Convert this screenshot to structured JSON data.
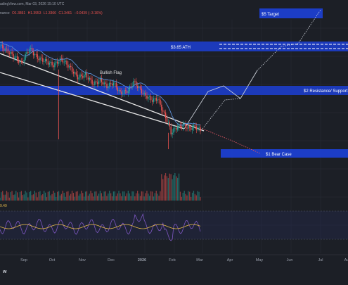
{
  "header": {
    "credit": "adingView.com, Mar 03, 2026 15:10 UTC",
    "symbol_fragment": "nance",
    "ohlc": [
      "O1.3861",
      "H1.3953",
      "L1.3366",
      "C1.3461",
      "−0.0439 (−3.16%)"
    ]
  },
  "colors": {
    "background": "#1c1f26",
    "candle_up": "#26a69a",
    "candle_down": "#ef5350",
    "level_band": "#1c3fcf",
    "flag_line": "#e8e8e8",
    "ma_line": "#5b8fd6",
    "rsi_line": "#7e57c2",
    "rsi_ma": "#e5b94a",
    "target_path": "#cfd4dc",
    "bear_path": "#e05561"
  },
  "annotations": {
    "target": "$5 Target",
    "ath": "$3.65 ATH",
    "resistance": "$2 Resistance/ Support",
    "bear": "$1 Bear Case",
    "pattern": "Bullish Flag"
  },
  "indicator": {
    "rsi_value": "9.49"
  },
  "logo": "w",
  "chart_data": {
    "type": "candlestick",
    "title": "",
    "x_ticks": [
      "Sep",
      "Oct",
      "Nov",
      "Dec",
      "2026",
      "Feb",
      "Mar",
      "Apr",
      "May",
      "Jun",
      "Jul",
      "Au"
    ],
    "price_series": {
      "name": "",
      "points": [
        [
          0,
          2.95
        ],
        [
          8,
          2.8
        ],
        [
          16,
          2.62
        ],
        [
          22,
          2.9
        ],
        [
          28,
          2.72
        ],
        [
          34,
          2.66
        ],
        [
          40,
          2.58
        ],
        [
          46,
          2.7
        ],
        [
          52,
          2.55
        ],
        [
          58,
          2.35
        ],
        [
          64,
          2.4
        ],
        [
          70,
          2.22
        ],
        [
          75,
          2.3
        ],
        [
          80,
          2.18
        ],
        [
          85,
          2.25
        ],
        [
          90,
          2.05
        ],
        [
          96,
          2.1
        ],
        [
          100,
          2.27
        ],
        [
          104,
          2.15
        ],
        [
          108,
          2.02
        ],
        [
          114,
          1.92
        ],
        [
          118,
          1.95
        ],
        [
          122,
          1.7
        ],
        [
          126,
          1.48
        ],
        [
          128,
          1.3
        ],
        [
          132,
          1.4
        ],
        [
          137,
          1.45
        ],
        [
          142,
          1.38
        ],
        [
          146,
          1.42
        ],
        [
          150,
          1.35
        ]
      ],
      "x_unit": "trading days since start of visible range"
    },
    "levels": [
      {
        "label": "$3.65 ATH",
        "value": 3.65
      },
      {
        "label": "$2 Resistance/ Support",
        "value": 2.0
      },
      {
        "label": "$1 Bear Case",
        "value": 1.0
      },
      {
        "label": "$5 Target",
        "value": 5.0
      }
    ],
    "pattern": "Bullish Flag",
    "volume": "shown",
    "rsi": {
      "last": 9.49
    }
  }
}
